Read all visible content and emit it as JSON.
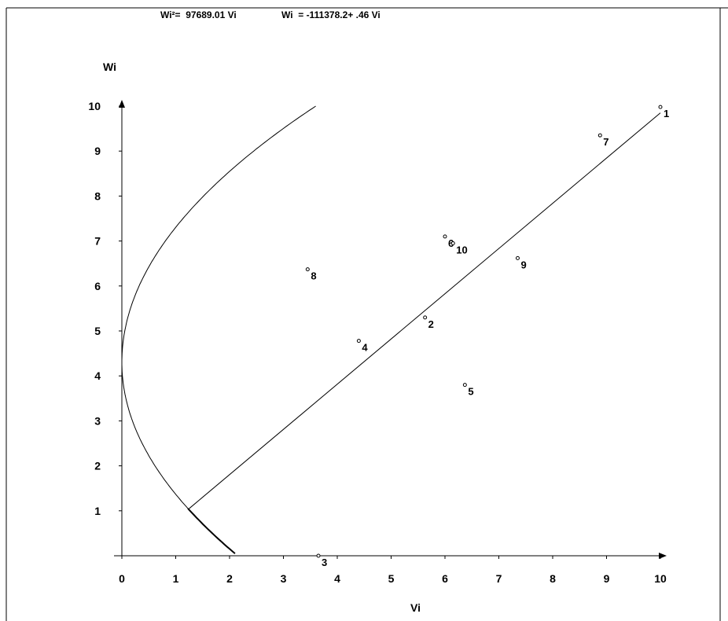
{
  "header": {
    "equation_1": "Wi²=  97689.01 Vi",
    "equation_2": "Wi  = -111378.2+ .46 Vi"
  },
  "chart_data": {
    "type": "scatter",
    "title": "",
    "xlabel": "Vi",
    "ylabel": "Wi",
    "xlim": [
      0,
      10
    ],
    "ylim": [
      0,
      10
    ],
    "x_ticks": [
      "0",
      "1",
      "2",
      "3",
      "4",
      "5",
      "6",
      "7",
      "8",
      "9",
      "10"
    ],
    "y_ticks": [
      "1",
      "2",
      "3",
      "4",
      "5",
      "6",
      "7",
      "8",
      "9",
      "10"
    ],
    "grid": false,
    "points": [
      {
        "label": "1",
        "x": 10.0,
        "y": 9.98
      },
      {
        "label": "2",
        "x": 5.63,
        "y": 5.3
      },
      {
        "label": "3",
        "x": 3.65,
        "y": 0.0
      },
      {
        "label": "4",
        "x": 4.4,
        "y": 4.78
      },
      {
        "label": "5",
        "x": 6.37,
        "y": 3.8
      },
      {
        "label": "6",
        "x": 6.0,
        "y": 7.1
      },
      {
        "label": "7",
        "x": 8.88,
        "y": 9.35
      },
      {
        "label": "8",
        "x": 3.45,
        "y": 6.37
      },
      {
        "label": "9",
        "x": 7.35,
        "y": 6.62
      },
      {
        "label": "10",
        "x": 6.15,
        "y": 6.95
      }
    ],
    "line": {
      "x_start": 1.25,
      "x_end": 10.0,
      "y_start": 1.05,
      "y_end": 9.85
    },
    "parabola": {
      "vertex_x": 0.0,
      "vertex_y": 4.3,
      "points": [
        [
          2.15,
          0
        ],
        [
          1.25,
          1.05
        ],
        [
          0,
          4.3
        ],
        [
          1.0,
          7.4
        ],
        [
          3.6,
          10.0
        ]
      ]
    }
  }
}
